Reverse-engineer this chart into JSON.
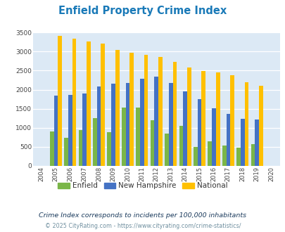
{
  "title": "Enfield Property Crime Index",
  "years": [
    2004,
    2005,
    2006,
    2007,
    2008,
    2009,
    2010,
    2011,
    2012,
    2013,
    2014,
    2015,
    2016,
    2017,
    2018,
    2019,
    2020
  ],
  "enfield": [
    0,
    900,
    730,
    940,
    1250,
    880,
    1530,
    1530,
    1195,
    840,
    1050,
    490,
    650,
    530,
    470,
    580,
    0
  ],
  "new_hampshire": [
    0,
    1840,
    1860,
    1890,
    2090,
    2150,
    2170,
    2280,
    2340,
    2180,
    1960,
    1750,
    1510,
    1370,
    1240,
    1210,
    0
  ],
  "national": [
    0,
    3415,
    3330,
    3260,
    3200,
    3040,
    2960,
    2910,
    2860,
    2730,
    2590,
    2490,
    2460,
    2380,
    2200,
    2110,
    0
  ],
  "enfield_color": "#7ab648",
  "nh_color": "#4472c4",
  "national_color": "#ffc000",
  "bg_color": "#dce9f5",
  "ylabel_max": 3500,
  "yticks": [
    0,
    500,
    1000,
    1500,
    2000,
    2500,
    3000,
    3500
  ],
  "subtitle": "Crime Index corresponds to incidents per 100,000 inhabitants",
  "footer": "© 2025 CityRating.com - https://www.cityrating.com/crime-statistics/",
  "title_color": "#1a7ab8",
  "subtitle_color": "#1a3a5c",
  "footer_color": "#7090a0",
  "fig_width": 4.06,
  "fig_height": 3.3,
  "fig_dpi": 100
}
